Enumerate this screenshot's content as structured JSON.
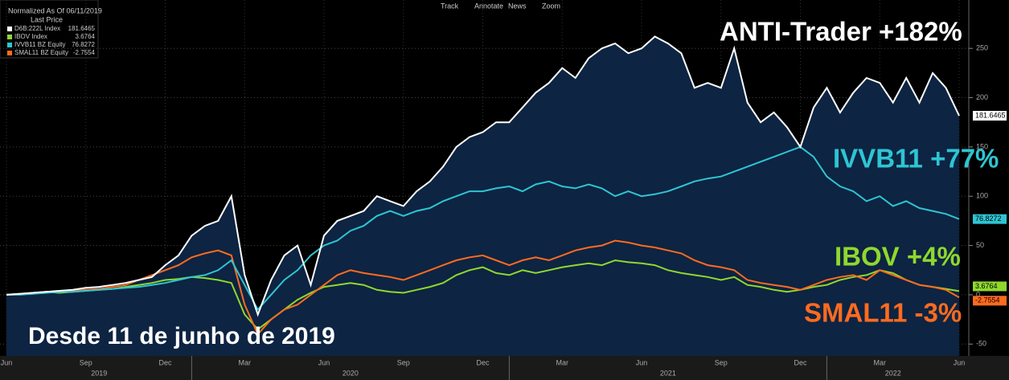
{
  "chart_data": {
    "type": "line",
    "legend_title": "Normalized As Of 06/11/2019",
    "legend_subtitle": "Last Price",
    "toolbar": [
      "Track",
      "Annotate",
      "News",
      "Zoom"
    ],
    "categories": [
      "Jun",
      null,
      null,
      null,
      null,
      null,
      "Sep",
      null,
      null,
      null,
      null,
      null,
      "Dec",
      null,
      null,
      null,
      null,
      null,
      "Mar",
      null,
      null,
      null,
      null,
      null,
      "Jun",
      null,
      null,
      null,
      null,
      null,
      "Sep",
      null,
      null,
      null,
      null,
      null,
      "Dec",
      null,
      null,
      null,
      null,
      null,
      "Mar",
      null,
      null,
      null,
      null,
      null,
      "Jun",
      null,
      null,
      null,
      null,
      null,
      "Sep",
      null,
      null,
      null,
      null,
      null,
      "Dec",
      null,
      null,
      null,
      null,
      null,
      "Mar",
      null,
      null,
      null,
      null,
      null,
      "Jun"
    ],
    "x_groups": [
      "2019",
      "2020",
      "2021",
      "2022"
    ],
    "series": [
      {
        "name": "D6B:222L Index",
        "color": "#ffffff",
        "area": true,
        "values": [
          0,
          1,
          2,
          3,
          4,
          5,
          7,
          8,
          10,
          12,
          15,
          18,
          30,
          40,
          60,
          70,
          75,
          100,
          20,
          -20,
          15,
          40,
          50,
          10,
          60,
          75,
          80,
          85,
          100,
          95,
          90,
          105,
          115,
          130,
          150,
          160,
          165,
          175,
          175,
          190,
          205,
          215,
          230,
          220,
          240,
          250,
          255,
          245,
          250,
          262,
          255,
          245,
          210,
          215,
          210,
          250,
          195,
          175,
          185,
          170,
          150,
          190,
          210,
          185,
          205,
          220,
          215,
          195,
          220,
          195,
          225,
          210,
          181.6465
        ]
      },
      {
        "name": "IBOV Index",
        "color": "#8fd82e",
        "values": [
          0,
          1,
          2,
          3,
          2,
          3,
          4,
          5,
          6,
          8,
          10,
          12,
          15,
          16,
          18,
          17,
          15,
          12,
          -20,
          -35,
          -25,
          -15,
          -5,
          2,
          8,
          10,
          12,
          10,
          5,
          3,
          2,
          5,
          8,
          12,
          20,
          25,
          28,
          22,
          20,
          25,
          22,
          25,
          28,
          30,
          32,
          30,
          35,
          33,
          32,
          30,
          25,
          22,
          20,
          18,
          15,
          18,
          10,
          8,
          5,
          3,
          5,
          8,
          10,
          15,
          18,
          20,
          25,
          22,
          15,
          10,
          8,
          6,
          3.6764
        ]
      },
      {
        "name": "IVVB11 BZ Equity",
        "color": "#2ec5d3",
        "values": [
          0,
          0,
          1,
          2,
          3,
          3,
          4,
          5,
          6,
          7,
          8,
          10,
          12,
          15,
          18,
          20,
          25,
          35,
          10,
          -15,
          0,
          15,
          25,
          40,
          50,
          55,
          65,
          70,
          80,
          85,
          80,
          85,
          88,
          95,
          100,
          105,
          105,
          108,
          110,
          105,
          112,
          115,
          110,
          108,
          112,
          108,
          100,
          105,
          100,
          102,
          105,
          110,
          115,
          118,
          120,
          125,
          130,
          135,
          140,
          145,
          150,
          140,
          120,
          110,
          105,
          95,
          100,
          90,
          95,
          88,
          85,
          82,
          76.8272
        ]
      },
      {
        "name": "SMAL11 BZ Equity",
        "color": "#ff6b1f",
        "values": [
          0,
          1,
          2,
          3,
          3,
          4,
          5,
          6,
          8,
          10,
          15,
          20,
          25,
          30,
          38,
          42,
          45,
          40,
          -10,
          -40,
          -25,
          -15,
          -10,
          0,
          10,
          20,
          25,
          22,
          20,
          18,
          15,
          20,
          25,
          30,
          35,
          38,
          40,
          35,
          30,
          35,
          38,
          35,
          40,
          45,
          48,
          50,
          55,
          53,
          50,
          48,
          45,
          42,
          35,
          30,
          28,
          25,
          15,
          12,
          10,
          8,
          5,
          10,
          15,
          18,
          20,
          15,
          25,
          20,
          15,
          10,
          8,
          5,
          -2.7554
        ]
      }
    ],
    "annotations": [
      {
        "text": "ANTI-Trader +182%",
        "color": "#ffffff"
      },
      {
        "text": "IVVB11 +77%",
        "color": "#2ec5d3"
      },
      {
        "text": "IBOV +4%",
        "color": "#8fd82e"
      },
      {
        "text": "SMAL11 -3%",
        "color": "#ff6b1f"
      },
      {
        "text": "Desde 11 de junho de 2019",
        "color": "#ffffff"
      }
    ],
    "ylim": [
      -62,
      295
    ],
    "yticks": [
      -50,
      0,
      50,
      100,
      150,
      200,
      250
    ],
    "grid": true
  }
}
